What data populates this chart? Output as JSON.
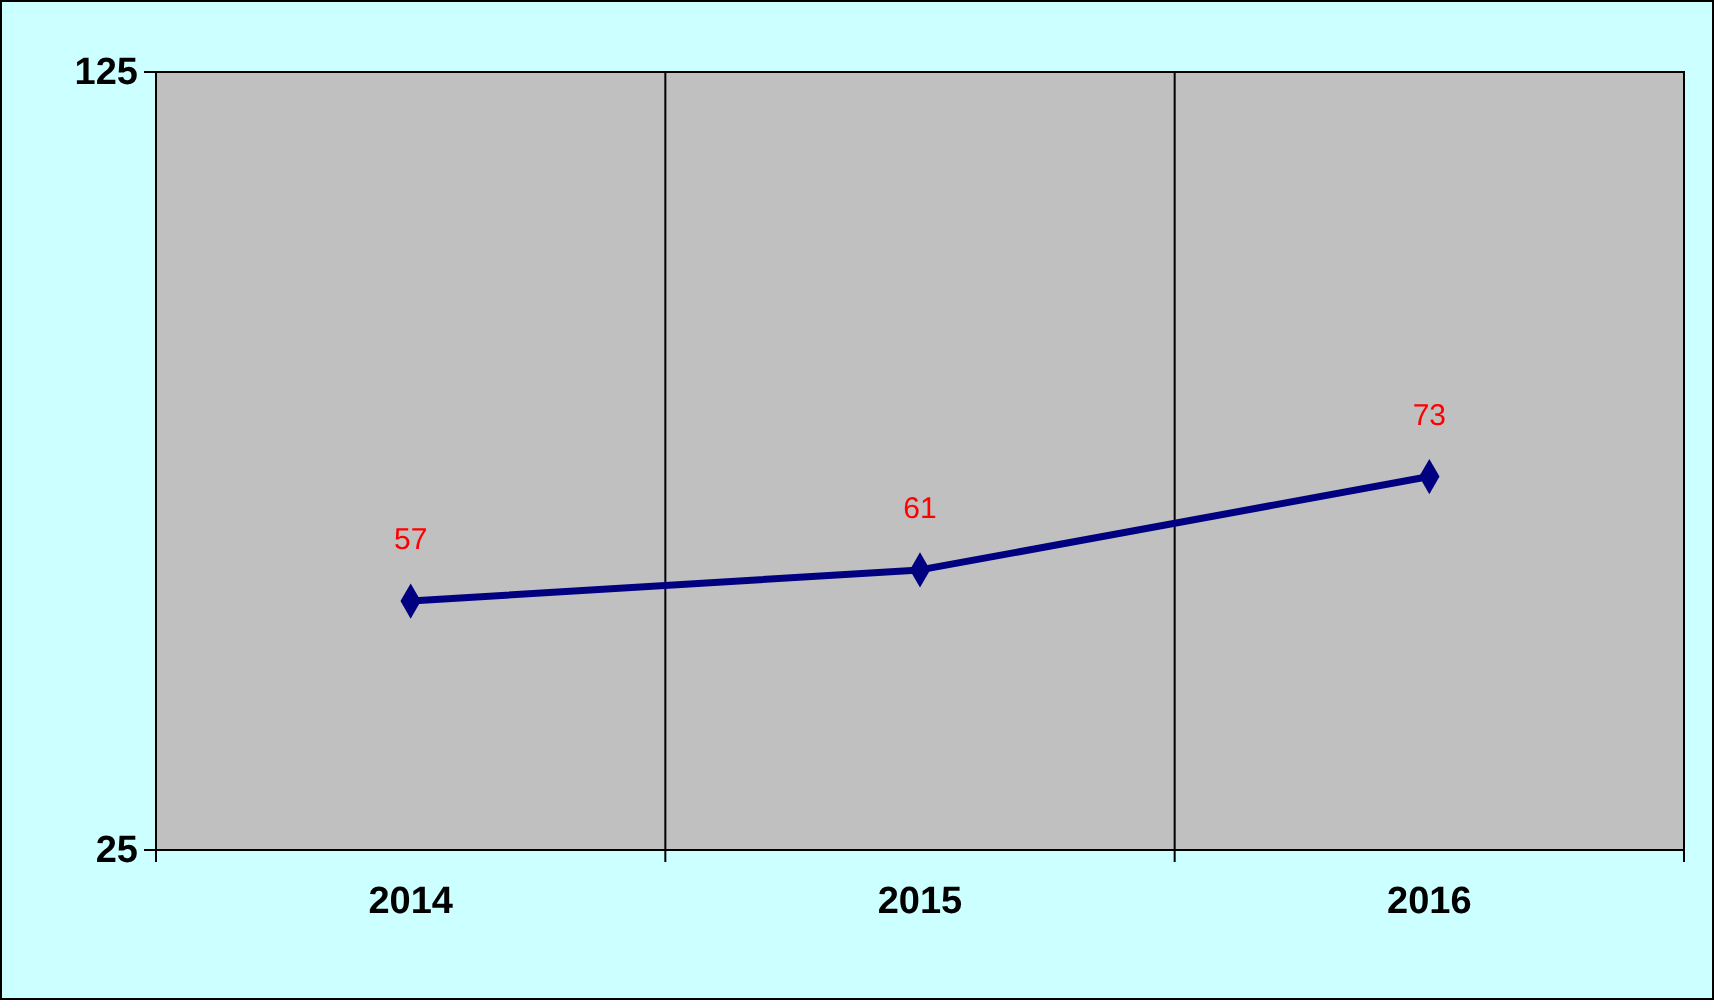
{
  "chart_data": {
    "type": "line",
    "categories": [
      "2014",
      "2015",
      "2016"
    ],
    "series": [
      {
        "color": "#000080",
        "values": [
          57,
          61,
          73
        ]
      }
    ],
    "ylim": [
      25,
      125
    ],
    "yticks": [
      25,
      125
    ],
    "grid": "x",
    "marker": "diamond",
    "line_style": "solid",
    "data_labels": true
  }
}
